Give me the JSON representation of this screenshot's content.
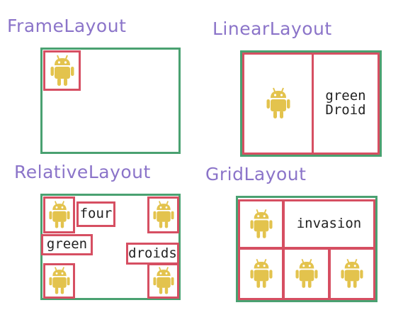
{
  "frame_layout": {
    "title": "FrameLayout",
    "icon": "android-icon"
  },
  "linear_layout": {
    "title": "LinearLayout",
    "icon": "android-icon",
    "text_line1": "green",
    "text_line2": "Droid"
  },
  "relative_layout": {
    "title": "RelativeLayout",
    "icon": "android-icon",
    "label_four": "four",
    "label_green": "green",
    "label_droids": "droids"
  },
  "grid_layout": {
    "title": "GridLayout",
    "icon": "android-icon",
    "label_invasion": "invasion"
  },
  "colors": {
    "title": "#8b74c9",
    "container_border": "#4aa171",
    "view_border": "#d64f62",
    "droid": "#e3c34d"
  }
}
